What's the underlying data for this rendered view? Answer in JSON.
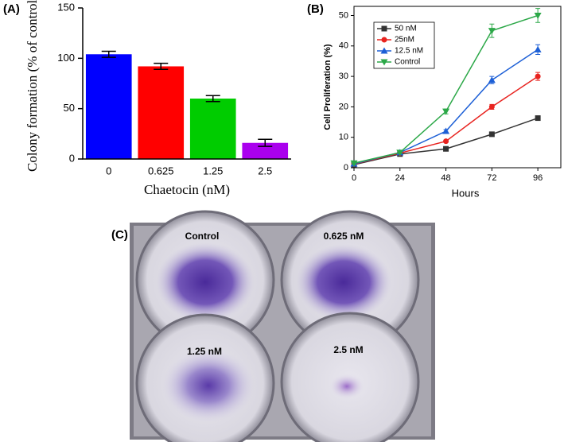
{
  "chart_data": [
    {
      "type": "bar",
      "panel_label": "(A)",
      "x_label": "Chaetocin (nM)",
      "y_label": "Colony formation (% of control)",
      "categories": [
        "0",
        "0.625",
        "1.25",
        "2.5"
      ],
      "values": [
        104,
        92,
        60,
        16
      ],
      "errors": [
        3,
        3,
        3,
        3.5
      ],
      "colors": [
        "#0000ff",
        "#ff0000",
        "#00cc00",
        "#aa00ee"
      ],
      "ylim": [
        0,
        150
      ],
      "yticks": [
        0,
        50,
        100,
        150
      ]
    },
    {
      "type": "line",
      "panel_label": "(B)",
      "x_label": "Hours",
      "y_label": "Cell Proliferation (%)",
      "x": [
        0,
        24,
        48,
        72,
        96
      ],
      "xlim": [
        0,
        108
      ],
      "xticks": [
        0,
        24,
        48,
        72,
        96
      ],
      "ylim": [
        0,
        53
      ],
      "yticks": [
        0,
        10,
        20,
        30,
        40,
        50
      ],
      "legend": "upper left",
      "series": [
        {
          "name": "50 nM",
          "color": "#333333",
          "marker": "square",
          "values": [
            1,
            4.5,
            6.2,
            11,
            16.3
          ],
          "errors": [
            0.3,
            0.3,
            0.3,
            0.4,
            0.5
          ]
        },
        {
          "name": "25nM",
          "color": "#e8231f",
          "marker": "circle",
          "values": [
            1.2,
            4.8,
            8.7,
            20,
            30
          ],
          "errors": [
            0.3,
            0.3,
            0.4,
            0.8,
            1.3
          ]
        },
        {
          "name": "12.5 nM",
          "color": "#1c5fd6",
          "marker": "triangle-up",
          "values": [
            1.3,
            5,
            12,
            28.8,
            38.8
          ],
          "errors": [
            0.3,
            0.3,
            0.5,
            1.2,
            1.6
          ]
        },
        {
          "name": "Control",
          "color": "#2ca848",
          "marker": "triangle-down",
          "values": [
            1.5,
            5,
            18.5,
            45,
            50
          ],
          "errors": [
            0.3,
            0.3,
            0.8,
            2.2,
            2.3
          ]
        }
      ]
    }
  ],
  "photo": {
    "panel_label": "(C)",
    "labels": [
      "Control",
      "0.625 nM",
      "1.25 nM",
      "2.5 nM"
    ]
  }
}
